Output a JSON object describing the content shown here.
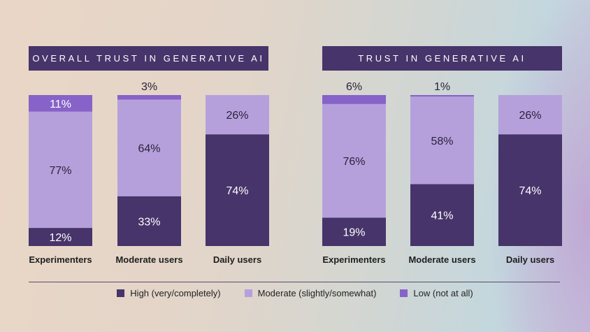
{
  "colors": {
    "high": "#46346a",
    "moderate": "#b6a0dc",
    "low": "#8762c8"
  },
  "chart_data": [
    {
      "type": "bar",
      "stacked": true,
      "title": "OVERALL TRUST IN GENERATIVE AI",
      "categories": [
        "Experimenters",
        "Moderate users",
        "Daily users"
      ],
      "series": [
        {
          "name": "High (very/completely)",
          "values": [
            12,
            33,
            74
          ]
        },
        {
          "name": "Moderate (slightly/somewhat)",
          "values": [
            77,
            64,
            26
          ]
        },
        {
          "name": "Low (not at all)",
          "values": [
            11,
            3,
            0
          ]
        }
      ],
      "labels": {
        "high": [
          "12%",
          "33%",
          "74%"
        ],
        "moderate": [
          "77%",
          "64%",
          "26%"
        ],
        "low": [
          "11%",
          "3%",
          ""
        ]
      }
    },
    {
      "type": "bar",
      "stacked": true,
      "title": "TRUST IN GENERATIVE AI",
      "categories": [
        "Experimenters",
        "Moderate users",
        "Daily users"
      ],
      "series": [
        {
          "name": "High (very/completely)",
          "values": [
            19,
            41,
            74
          ]
        },
        {
          "name": "Moderate (slightly/somewhat)",
          "values": [
            76,
            58,
            26
          ]
        },
        {
          "name": "Low (not at all)",
          "values": [
            6,
            1,
            0
          ]
        }
      ],
      "labels": {
        "high": [
          "19%",
          "41%",
          "74%"
        ],
        "moderate": [
          "76%",
          "58%",
          "26%"
        ],
        "low": [
          "6%",
          "1%",
          ""
        ]
      }
    }
  ],
  "legend": [
    "High (very/completely)",
    "Moderate (slightly/somewhat)",
    "Low (not at all)"
  ],
  "legend_placement": "bottom"
}
